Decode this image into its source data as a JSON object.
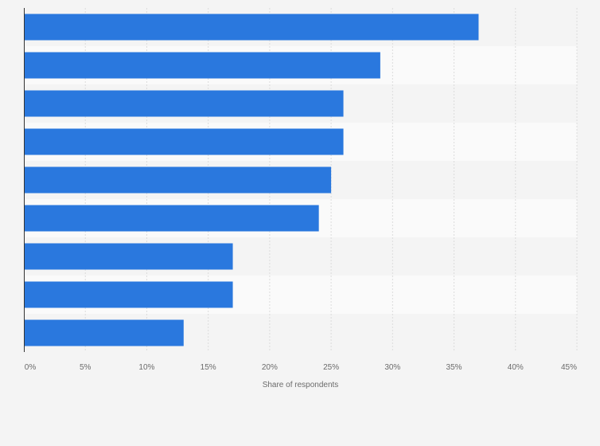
{
  "chart_data": {
    "type": "bar",
    "orientation": "horizontal",
    "categories": [
      "",
      "",
      "",
      "",
      "",
      "",
      "",
      "",
      ""
    ],
    "values": [
      37,
      29,
      26,
      26,
      25,
      24,
      17,
      17,
      13
    ],
    "xlabel": "Share of respondents",
    "ylabel": "",
    "xlim": [
      0,
      45
    ],
    "xticks": [
      0,
      5,
      10,
      15,
      20,
      25,
      30,
      35,
      40,
      45
    ],
    "xtick_labels": [
      "0%",
      "5%",
      "10%",
      "15%",
      "20%",
      "25%",
      "30%",
      "35%",
      "40%",
      "45%"
    ],
    "grid": true,
    "bar_color": "#2a78de",
    "band_colors": [
      "#f4f4f4",
      "#fafafa"
    ],
    "gridline_color": "#dcdcdc",
    "axis_color": "#333333"
  }
}
